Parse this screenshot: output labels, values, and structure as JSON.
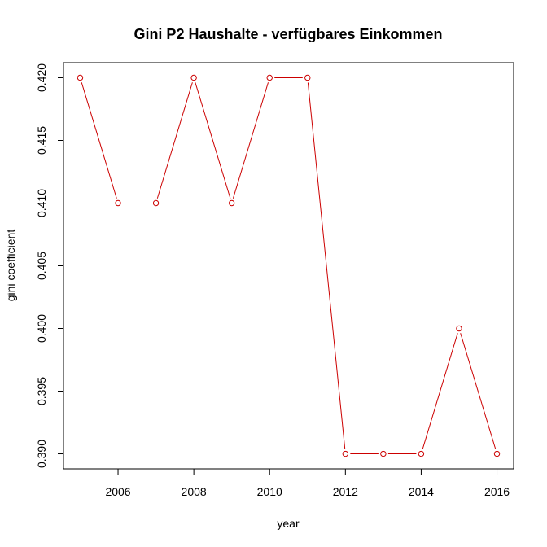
{
  "chart_data": {
    "type": "line",
    "title": "Gini P2 Haushalte - verfügbares Einkommen",
    "xlabel": "year",
    "ylabel": "gini coefficient",
    "x": [
      2005,
      2006,
      2007,
      2008,
      2009,
      2010,
      2011,
      2012,
      2013,
      2014,
      2015,
      2016
    ],
    "series": [
      {
        "values": [
          0.42,
          0.41,
          0.41,
          0.42,
          0.41,
          0.42,
          0.42,
          0.39,
          0.39,
          0.39,
          0.4,
          0.39
        ]
      }
    ],
    "xlim": [
      2004.56,
      2016.44
    ],
    "ylim": [
      0.3888,
      0.4212
    ],
    "x_ticks": [
      "2006",
      "2008",
      "2010",
      "2012",
      "2014",
      "2016"
    ],
    "y_ticks": [
      "0.390",
      "0.395",
      "0.400",
      "0.405",
      "0.410",
      "0.415",
      "0.420"
    ],
    "line_style": "lines with open circle markers",
    "series_color": "#cc0000",
    "grid": false,
    "legend": "none"
  }
}
